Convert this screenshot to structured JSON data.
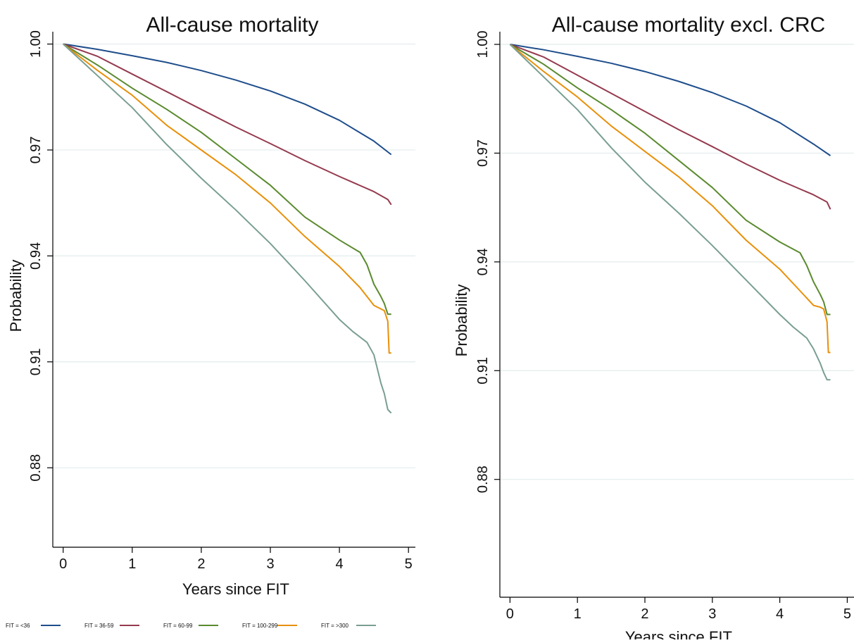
{
  "colors": {
    "fit_lt36": "#1f4e8c",
    "fit_36_59": "#953a4e",
    "fit_60_99": "#5a8a2e",
    "fit_100_299": "#e8900a",
    "fit_gt300": "#7a9e93",
    "gridline": "#e3ecec"
  },
  "legend": {
    "items": [
      {
        "label": "FIT = <36",
        "color": "#1f4e8c"
      },
      {
        "label": "FIT = 36-59",
        "color": "#953a4e"
      },
      {
        "label": "FIT = 60-99",
        "color": "#5a8a2e"
      },
      {
        "label": "FIT = 100-299",
        "color": "#e8900a"
      },
      {
        "label": "FIT = >300",
        "color": "#7a9e93"
      }
    ]
  },
  "chart_data": [
    {
      "type": "line",
      "title": "All-cause mortality",
      "xlabel": "Years since FIT",
      "ylabel": "Probability",
      "xlim": [
        -0.15,
        5.1
      ],
      "ylim": [
        0.8575,
        1.0035
      ],
      "xticks": [
        0,
        1,
        2,
        3,
        4,
        5
      ],
      "yticks": [
        1.0,
        0.97,
        0.94,
        0.91,
        0.88
      ],
      "yticklabels": [
        "1.00",
        "0.97",
        "0.94",
        "0.91",
        "0.88"
      ],
      "grid": true,
      "series": [
        {
          "name": "FIT = <36",
          "x": [
            0,
            0.5,
            1,
            1.5,
            2,
            2.5,
            3,
            3.5,
            4,
            4.5,
            4.75
          ],
          "y": [
            1.0,
            0.9985,
            0.9967,
            0.9948,
            0.9925,
            0.9898,
            0.9867,
            0.983,
            0.9784,
            0.9725,
            0.9687
          ]
        },
        {
          "name": "FIT = 36-59",
          "x": [
            0,
            0.5,
            1,
            1.5,
            2,
            2.5,
            3,
            3.5,
            4,
            4.5,
            4.7,
            4.75
          ],
          "y": [
            1.0,
            0.9965,
            0.9915,
            0.9865,
            0.9815,
            0.9765,
            0.9718,
            0.967,
            0.9625,
            0.9582,
            0.956,
            0.9545
          ]
        },
        {
          "name": "FIT = 60-99",
          "x": [
            0,
            0.5,
            1,
            1.5,
            2,
            2.5,
            3,
            3.5,
            4,
            4.3,
            4.4,
            4.5,
            4.6,
            4.65,
            4.7,
            4.75
          ],
          "y": [
            1.0,
            0.994,
            0.9875,
            0.9815,
            0.975,
            0.9675,
            0.96,
            0.951,
            0.9445,
            0.941,
            0.9375,
            0.932,
            0.9285,
            0.9265,
            0.9235,
            0.9235
          ]
        },
        {
          "name": "FIT = 100-299",
          "x": [
            0,
            0.5,
            1,
            1.5,
            2,
            2.5,
            3,
            3.5,
            4,
            4.3,
            4.5,
            4.6,
            4.65,
            4.7,
            4.72,
            4.75
          ],
          "y": [
            1.0,
            0.9925,
            0.9855,
            0.977,
            0.97,
            0.963,
            0.955,
            0.9455,
            0.937,
            0.931,
            0.926,
            0.925,
            0.9245,
            0.9215,
            0.9125,
            0.9125
          ]
        },
        {
          "name": "FIT = >300",
          "x": [
            0,
            0.5,
            1,
            1.5,
            2,
            2.5,
            3,
            3.5,
            4,
            4.2,
            4.4,
            4.5,
            4.6,
            4.65,
            4.7,
            4.75
          ],
          "y": [
            1.0,
            0.991,
            0.982,
            0.9715,
            0.962,
            0.953,
            0.9435,
            0.933,
            0.922,
            0.9185,
            0.9155,
            0.912,
            0.904,
            0.901,
            0.8965,
            0.8955
          ]
        }
      ]
    },
    {
      "type": "line",
      "title": "All-cause mortality excl. CRC",
      "xlabel": "Years since FIT",
      "ylabel": "Probability",
      "xlim": [
        -0.15,
        5.1
      ],
      "ylim": [
        0.8475,
        1.0035
      ],
      "xticks": [
        0,
        1,
        2,
        3,
        4,
        5
      ],
      "yticks": [
        1.0,
        0.97,
        0.94,
        0.91,
        0.88
      ],
      "yticklabels": [
        "1.00",
        "0.97",
        "0.94",
        "0.91",
        "0.88"
      ],
      "grid": true,
      "series": [
        {
          "name": "FIT = <36",
          "x": [
            0,
            0.5,
            1,
            1.5,
            2,
            2.5,
            3,
            3.5,
            4,
            4.5,
            4.75
          ],
          "y": [
            1.0,
            0.9985,
            0.9967,
            0.9948,
            0.9925,
            0.9898,
            0.9867,
            0.983,
            0.9784,
            0.9725,
            0.9693
          ]
        },
        {
          "name": "FIT = 36-59",
          "x": [
            0,
            0.5,
            1,
            1.5,
            2,
            2.5,
            3,
            3.5,
            4,
            4.5,
            4.7,
            4.75
          ],
          "y": [
            1.0,
            0.9965,
            0.9915,
            0.9865,
            0.9815,
            0.9765,
            0.9718,
            0.967,
            0.9625,
            0.9585,
            0.9565,
            0.9545
          ]
        },
        {
          "name": "FIT = 60-99",
          "x": [
            0,
            0.5,
            1,
            1.5,
            2,
            2.5,
            3,
            3.5,
            4,
            4.3,
            4.4,
            4.5,
            4.6,
            4.65,
            4.7,
            4.75
          ],
          "y": [
            1.0,
            0.9945,
            0.988,
            0.982,
            0.9755,
            0.968,
            0.9605,
            0.9515,
            0.9455,
            0.9425,
            0.939,
            0.9345,
            0.931,
            0.929,
            0.9255,
            0.9255
          ]
        },
        {
          "name": "FIT = 100-299",
          "x": [
            0,
            0.5,
            1,
            1.5,
            2,
            2.5,
            3,
            3.5,
            4,
            4.3,
            4.5,
            4.6,
            4.65,
            4.7,
            4.72,
            4.75
          ],
          "y": [
            1.0,
            0.9925,
            0.9855,
            0.9775,
            0.9705,
            0.9635,
            0.9555,
            0.946,
            0.938,
            0.932,
            0.928,
            0.9275,
            0.927,
            0.9235,
            0.915,
            0.915
          ]
        },
        {
          "name": "FIT = >300",
          "x": [
            0,
            0.5,
            1,
            1.5,
            2,
            2.5,
            3,
            3.5,
            4,
            4.2,
            4.4,
            4.5,
            4.6,
            4.65,
            4.7,
            4.75
          ],
          "y": [
            1.0,
            0.991,
            0.982,
            0.9715,
            0.962,
            0.9535,
            0.9445,
            0.935,
            0.9255,
            0.922,
            0.919,
            0.916,
            0.912,
            0.9095,
            0.9075,
            0.9075
          ]
        }
      ]
    }
  ]
}
